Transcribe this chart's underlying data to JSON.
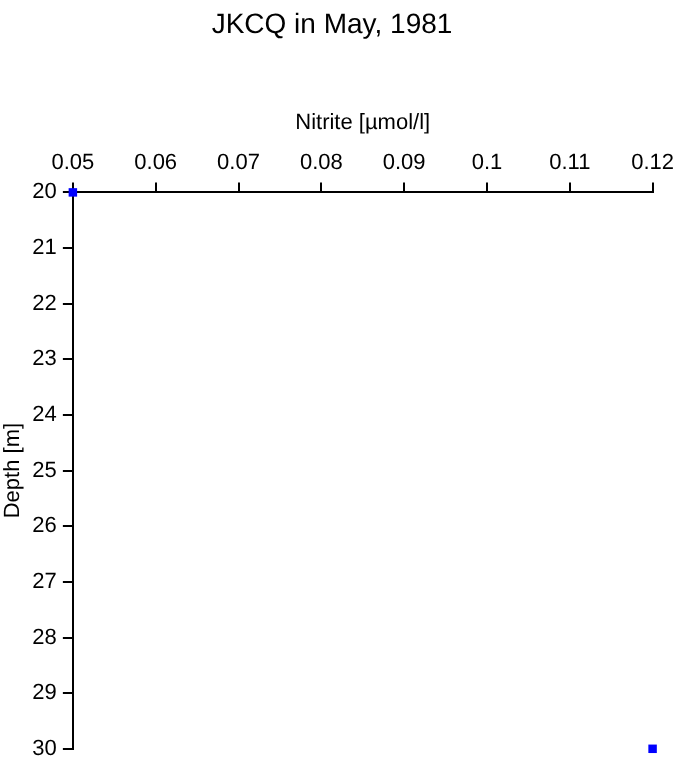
{
  "chart_data": {
    "type": "scatter",
    "title": "JKCQ in May, 1981",
    "xlabel": "Nitrite [µmol/l]",
    "ylabel": "Depth [m]",
    "x": [
      0.05,
      0.12
    ],
    "series": [
      {
        "color": "#0000ff",
        "values": [
          20,
          30
        ]
      }
    ],
    "xlim": [
      0.05,
      0.12
    ],
    "xticks": [
      0.05,
      0.06,
      0.07,
      0.08,
      0.09,
      0.1,
      0.11,
      0.12
    ],
    "ylim": [
      30,
      20
    ],
    "yticks": [
      20,
      21,
      22,
      23,
      24,
      25,
      26,
      27,
      28,
      29,
      30
    ],
    "grid": false,
    "legend": false,
    "marker": "square"
  }
}
